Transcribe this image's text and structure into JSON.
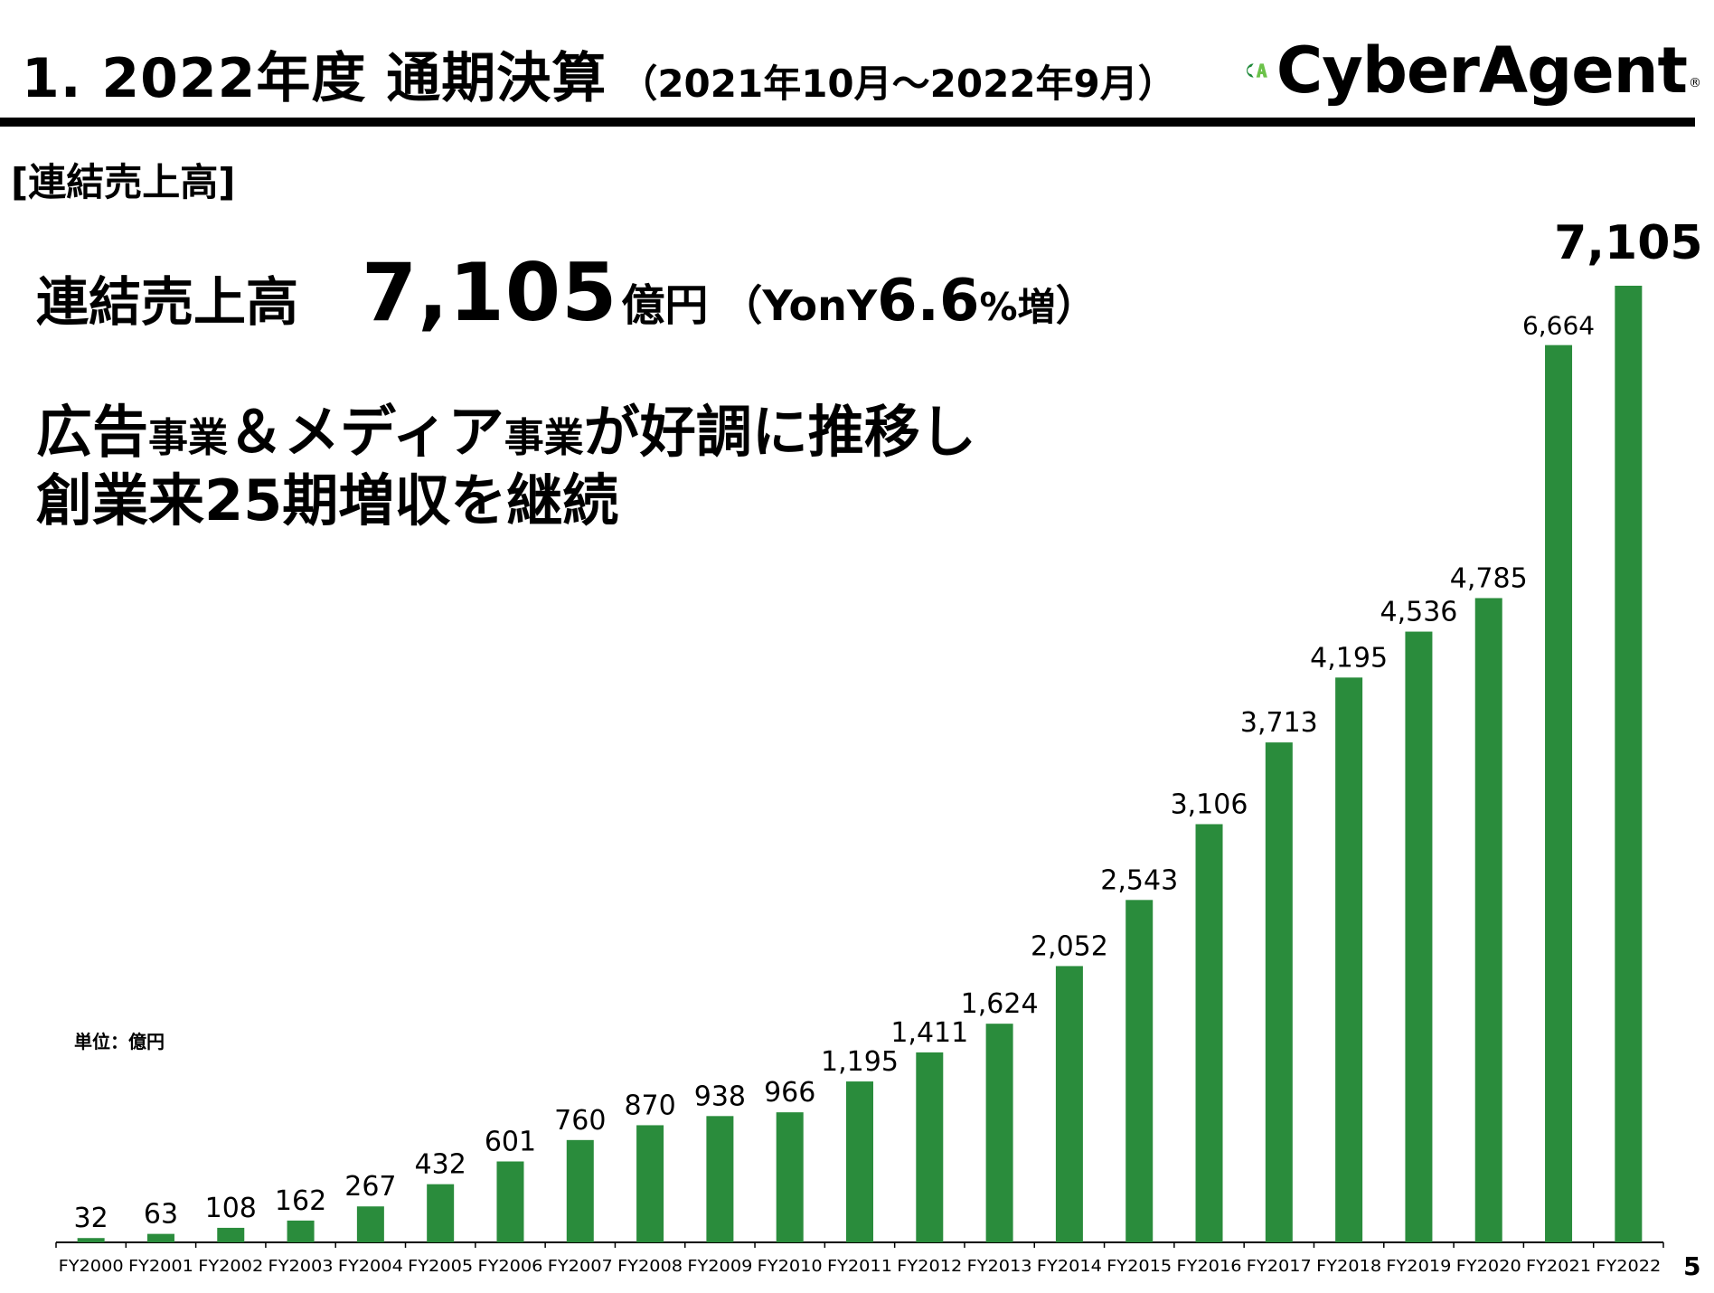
{
  "header": {
    "title": "1.  2022年度 通期決算",
    "period": "（2021年10月～2022年9月）",
    "logo_text": "CyberAgent",
    "logo_mark_text": "CA",
    "logo_reg": "®"
  },
  "section_label": "[連結売上高]",
  "headline": {
    "label": "連結売上高",
    "value": "7,105",
    "unit": "億円",
    "yoy_open": "（",
    "yoy_prefix": "YonY",
    "yoy_value": "6.6",
    "yoy_suffix": "%増",
    "yoy_close": "）"
  },
  "message": {
    "line1": [
      {
        "text": "広告",
        "size": "big"
      },
      {
        "text": "事業",
        "size": "small"
      },
      {
        "text": "＆メディア",
        "size": "big"
      },
      {
        "text": "事業",
        "size": "small"
      },
      {
        "text": "が好調に推移し",
        "size": "big"
      }
    ],
    "line2": "創業来25期増収を継続"
  },
  "unit_note": "単位：億円",
  "page_number": "5",
  "colors": {
    "bar": "#2a8c3c",
    "logo_green_dark": "#1f8a3a",
    "logo_green_light": "#6cc24a",
    "axis": "#000000"
  },
  "chart_data": {
    "type": "bar",
    "categories": [
      "FY2000",
      "FY2001",
      "FY2002",
      "FY2003",
      "FY2004",
      "FY2005",
      "FY2006",
      "FY2007",
      "FY2008",
      "FY2009",
      "FY2010",
      "FY2011",
      "FY2012",
      "FY2013",
      "FY2014",
      "FY2015",
      "FY2016",
      "FY2017",
      "FY2018",
      "FY2019",
      "FY2020",
      "FY2021",
      "FY2022"
    ],
    "values": [
      32,
      63,
      108,
      162,
      267,
      432,
      601,
      760,
      870,
      938,
      966,
      1195,
      1411,
      1624,
      2052,
      2543,
      3106,
      3713,
      4195,
      4536,
      4785,
      6664,
      7105
    ],
    "labels": [
      "32",
      "63",
      "108",
      "162",
      "267",
      "432",
      "601",
      "760",
      "870",
      "938",
      "966",
      "1,195",
      "1,411",
      "1,624",
      "2,052",
      "2,543",
      "3,106",
      "3,713",
      "4,195",
      "4,536",
      "4,785",
      "6,664",
      "7,105"
    ],
    "title": "",
    "xlabel": "",
    "ylabel": "",
    "ylim": [
      0,
      7105
    ],
    "grid": false,
    "highlight_last_label": true
  }
}
